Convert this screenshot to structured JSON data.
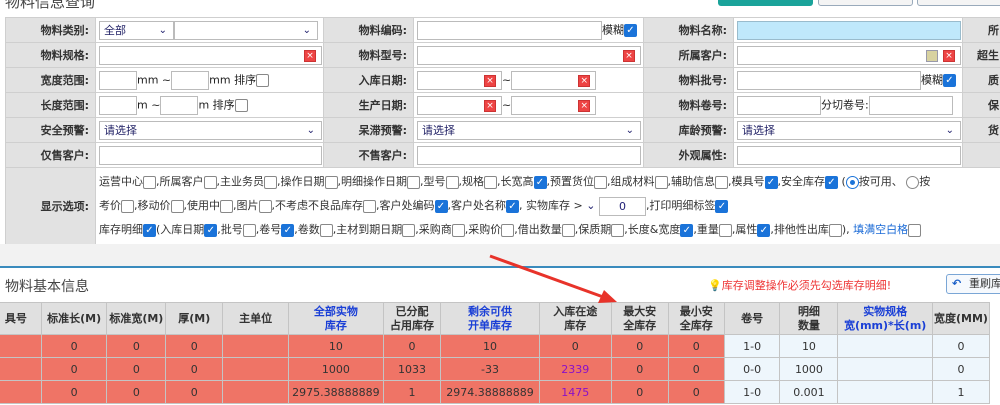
{
  "page": {
    "title": "物料信息查询"
  },
  "form": {
    "row1": {
      "l1": "物料类别:",
      "category": "全部",
      "l2": "物料编码:",
      "fuzzy": "模糊",
      "l3": "物料名称:",
      "l4": "所"
    },
    "row2": {
      "l1": "物料规格:",
      "l2": "物料型号:",
      "l3": "所属客户:",
      "l4": "超生"
    },
    "row3": {
      "l1": "宽度范围:",
      "unit1": "mm ~",
      "unit2": "mm 排序",
      "l2": "入库日期:",
      "tilde": "~",
      "l3": "物料批号:",
      "fuzzy": "模糊",
      "l4": "质"
    },
    "row4": {
      "l1": "长度范围:",
      "unit1": "m ~",
      "unit2": "m 排序",
      "l2": "生产日期:",
      "tilde": "~",
      "l3": "物料卷号:",
      "cut": "分切卷号:",
      "l4": "保"
    },
    "row5": {
      "l1": "安全预警:",
      "s1": "请选择",
      "l2": "呆滞预警:",
      "s2": "请选择",
      "l3": "库龄预警:",
      "s3": "请选择",
      "l4": "货"
    },
    "row6": {
      "l1": "仅售客户:",
      "l2": "不售客户:",
      "l3": "外观属性:"
    },
    "display": {
      "label": "显示选项:",
      "line1": [
        {
          "t": "运营中心",
          "c": false
        },
        {
          "t": ",所属客户",
          "c": false
        },
        {
          "t": ",主业务员",
          "c": false
        },
        {
          "t": ",操作日期",
          "c": false
        },
        {
          "t": ",明细操作日期",
          "c": false
        },
        {
          "t": ",型号",
          "c": false
        },
        {
          "t": ",规格",
          "c": false
        },
        {
          "t": ",长宽高",
          "c": true
        },
        {
          "t": ",预置货位",
          "c": false
        },
        {
          "t": ",组成材料",
          "c": false
        },
        {
          "t": ",辅助信息",
          "c": false
        },
        {
          "t": ",模具号",
          "c": true
        },
        {
          "t": ",安全库存",
          "c": true
        }
      ],
      "radio1": "按可用、",
      "radio2": "按",
      "line2": [
        {
          "t": "考价",
          "c": false
        },
        {
          "t": ",移动价",
          "c": false
        },
        {
          "t": ",使用中",
          "c": false
        },
        {
          "t": ",图片",
          "c": false
        },
        {
          "t": ",不考虑不良品库存",
          "c": false
        },
        {
          "t": ",客户处编码",
          "c": true
        },
        {
          "t": ",客户处名称",
          "c": true
        }
      ],
      "stock_label": ", 实物库存 >",
      "stock_value": "0",
      "print_label": ",打印明细标签",
      "print_checked": true,
      "line3": [
        {
          "t": "库存明细",
          "c": true
        },
        {
          "t": "(入库日期",
          "c": true
        },
        {
          "t": ",批号",
          "c": false
        },
        {
          "t": ",卷号",
          "c": true
        },
        {
          "t": ",卷数",
          "c": false
        },
        {
          "t": ",主材到期日期",
          "c": false
        },
        {
          "t": ",采购商",
          "c": false
        },
        {
          "t": ",采购价",
          "c": false
        },
        {
          "t": ",借出数量",
          "c": false
        },
        {
          "t": ",保质期",
          "c": false
        },
        {
          "t": ",长度&宽度",
          "c": true
        },
        {
          "t": ",重量",
          "c": false
        },
        {
          "t": ",属性",
          "c": true
        },
        {
          "t": ",排他性出库",
          "c": false
        }
      ],
      "close": "),",
      "fill_blank": "填满空白格"
    }
  },
  "section": {
    "title": "物料基本信息",
    "notice": "库存调整操作必须先勾选库存明细!",
    "refresh": "重刷库"
  },
  "table": {
    "headers": [
      [
        "具号"
      ],
      [
        "标准长(M)"
      ],
      [
        "标准宽(M)"
      ],
      [
        "厚(M)"
      ],
      [
        "主单位"
      ],
      [
        "全部实物",
        "库存"
      ],
      [
        "已分配",
        "占用库存"
      ],
      [
        "剩余可供",
        "开单库存"
      ],
      [
        "入库在途",
        "库存"
      ],
      [
        "最大安",
        "全库存"
      ],
      [
        "最小安",
        "全库存"
      ],
      [
        "卷号"
      ],
      [
        "明细",
        "数量"
      ],
      [
        "实物规格",
        "宽(mm)*长(m)"
      ],
      [
        "宽度(MM)"
      ]
    ],
    "blue_headers": [
      5,
      7,
      13
    ],
    "rows": [
      [
        "",
        "0",
        "0",
        "0",
        "",
        "10",
        "0",
        "10",
        "0",
        "0",
        "0",
        "1-0",
        "10",
        "",
        "0"
      ],
      [
        "",
        "0",
        "0",
        "0",
        "",
        "1000",
        "1033",
        "-33",
        "2339",
        "0",
        "0",
        "0-0",
        "1000",
        "",
        "0"
      ],
      [
        "",
        "0",
        "0",
        "0",
        "",
        "2975.38888889",
        "1",
        "2974.38888889",
        "1475",
        "0",
        "0",
        "1-0",
        "0.001",
        "",
        "1"
      ]
    ]
  },
  "colors": {
    "row_red": "#ef7466",
    "detail_bg": "#eef6fc",
    "accent": "#1a73d9",
    "arrow": "#e8332a"
  }
}
